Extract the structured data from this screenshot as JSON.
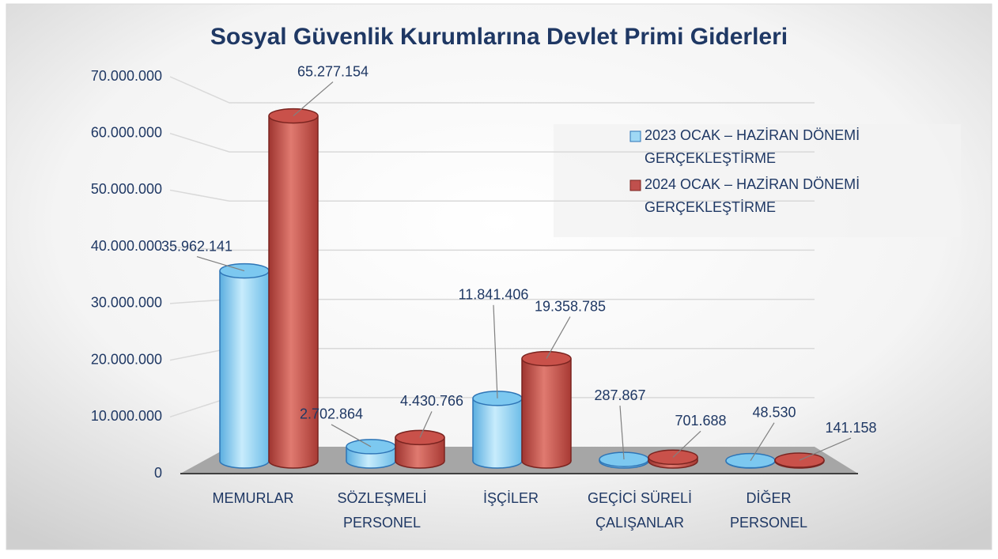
{
  "chart_data": {
    "type": "bar3d",
    "title": "Sosyal Güvenlik Kurumlarına Devlet Primi Giderleri",
    "categories": [
      "MEMURLAR",
      "SÖZLEŞMELİ\nPERSONEL",
      "İŞÇİLER",
      "GEÇİCİ SÜRELİ\nÇALIŞANLAR",
      "DİĞER\nPERSONEL"
    ],
    "series": [
      {
        "name": "2023 OCAK – HAZİRAN DÖNEMİ\nGERÇEKLEŞTİRME",
        "color": "#7cc8f0",
        "values": [
          35962141,
          2702864,
          11841406,
          287867,
          48530
        ],
        "value_labels": [
          "35.962.141",
          "2.702.864",
          "11.841.406",
          "287.867",
          "48.530"
        ]
      },
      {
        "name": "2024 OCAK – HAZİRAN DÖNEMİ\nGERÇEKLEŞTİRME",
        "color": "#c0504d",
        "values": [
          65277154,
          4430766,
          19358785,
          701688,
          141158
        ],
        "value_labels": [
          "65.277.154",
          "4.430.766",
          "19.358.785",
          "701.688",
          "141.158"
        ]
      }
    ],
    "ylim": [
      0,
      70000000
    ],
    "yticks": [
      0,
      {
        "value": 10000000,
        "label": "10.000.000"
      },
      {
        "value": 20000000,
        "label": "20.000.000"
      },
      {
        "value": 30000000,
        "label": "30.000.000"
      },
      {
        "value": 40000000,
        "label": "40.000.000"
      },
      {
        "value": 50000000,
        "label": "50.000.000"
      },
      {
        "value": 60000000,
        "label": "60.000.000"
      },
      {
        "value": 70000000,
        "label": "70.000.000"
      }
    ],
    "grid": true,
    "legend": "upper right"
  }
}
